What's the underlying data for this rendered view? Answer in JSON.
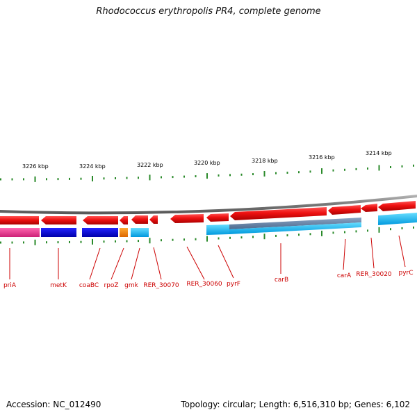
{
  "title": "Rhodococcus erythropolis PR4, complete genome",
  "accession": "Accession: NC_012490",
  "summary": "Topology: circular; Length: 6,516,310 bp; Genes: 6,102",
  "colors": {
    "forward": "#ee1111",
    "backbone": "#888888",
    "tick": "#2a8a2a",
    "label": "#cc0000"
  },
  "scale_labels": [
    {
      "text": "3226 kbp",
      "kbp": 3226
    },
    {
      "text": "3224 kbp",
      "kbp": 3224
    },
    {
      "text": "3222 kbp",
      "kbp": 3222
    },
    {
      "text": "3220 kbp",
      "kbp": 3220
    },
    {
      "text": "3218 kbp",
      "kbp": 3218
    },
    {
      "text": "3216 kbp",
      "kbp": 3216
    },
    {
      "text": "3214 kbp",
      "kbp": 3214
    }
  ],
  "gene_labels": [
    "priA",
    "metK",
    "coaBC",
    "rpoZ",
    "gmk",
    "RER_30070",
    "RER_30060",
    "pyrF",
    "carB",
    "carA",
    "RER_30020",
    "pyrC"
  ]
}
